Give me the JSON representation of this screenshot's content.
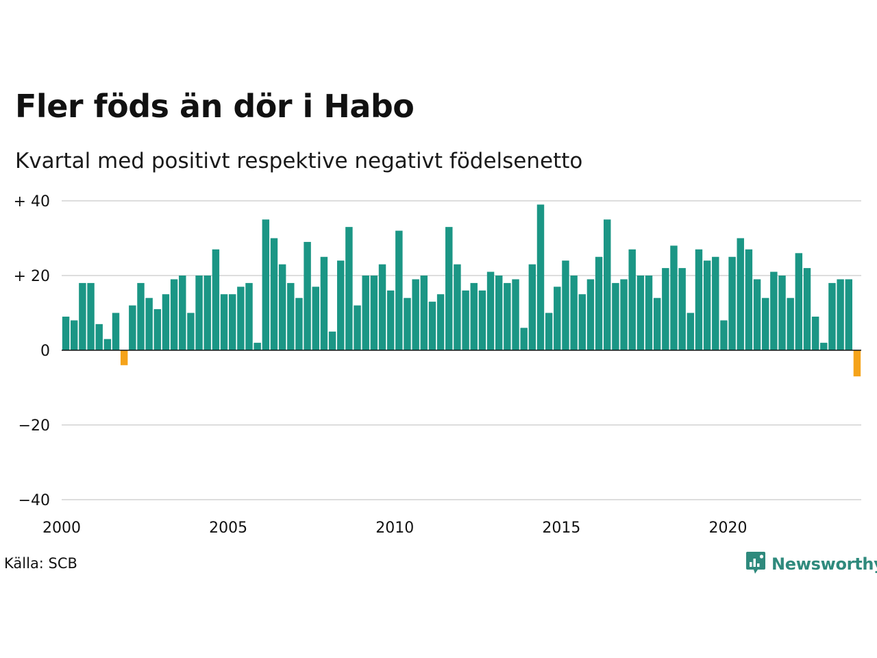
{
  "title": "Fler föds än dör i Habo",
  "subtitle": "Kvartal med positivt respektive negativt födelsenetto",
  "source": "Källa: SCB",
  "brand": {
    "name": "Newsworthy",
    "icon": "newsworthy-logo-icon"
  },
  "colors": {
    "positive": "#1b9685",
    "negative": "#f5a31a",
    "grid": "#dddddd",
    "zero_line": "#111111"
  },
  "chart_data": {
    "type": "bar",
    "title": "Fler föds än dör i Habo",
    "subtitle": "Kvartal med positivt respektive negativt födelsenetto",
    "xlabel": "",
    "ylabel": "",
    "x_start": 2000,
    "periods_per_year": 4,
    "ylim": [
      -40,
      40
    ],
    "y_ticks": [
      40,
      20,
      0,
      -20,
      -40
    ],
    "y_tick_labels": [
      "+ 40",
      "+ 20",
      "0",
      "−20",
      "−40"
    ],
    "x_ticks": [
      2000,
      2005,
      2010,
      2015,
      2020
    ],
    "x_tick_labels": [
      "2000",
      "2005",
      "2010",
      "2015",
      "2020"
    ],
    "grid": true,
    "values": [
      9,
      8,
      18,
      18,
      7,
      3,
      10,
      -4,
      12,
      18,
      14,
      11,
      15,
      19,
      20,
      10,
      20,
      20,
      27,
      15,
      15,
      17,
      18,
      2,
      35,
      30,
      23,
      18,
      14,
      29,
      17,
      25,
      5,
      24,
      33,
      12,
      20,
      20,
      23,
      16,
      32,
      14,
      19,
      20,
      13,
      15,
      33,
      23,
      16,
      18,
      16,
      21,
      20,
      18,
      19,
      6,
      23,
      39,
      10,
      17,
      24,
      20,
      15,
      19,
      25,
      35,
      18,
      19,
      27,
      20,
      20,
      14,
      22,
      28,
      22,
      10,
      27,
      24,
      25,
      8,
      25,
      30,
      27,
      19,
      14,
      21,
      20,
      14,
      26,
      22,
      9,
      2,
      18,
      19,
      19,
      -7
    ]
  }
}
